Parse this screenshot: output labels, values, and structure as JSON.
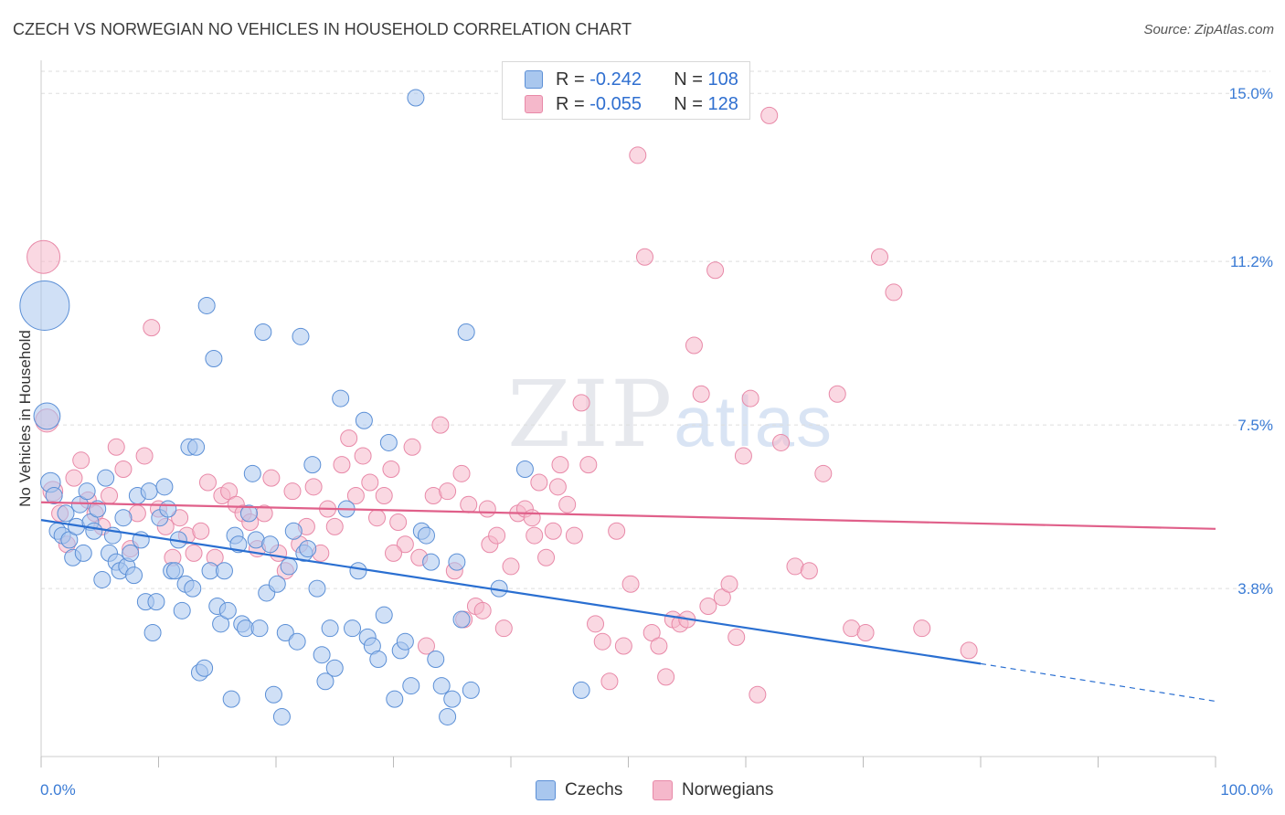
{
  "title": "CZECH VS NORWEGIAN NO VEHICLES IN HOUSEHOLD CORRELATION CHART",
  "source": "Source: ZipAtlas.com",
  "watermark": {
    "zip": "ZIP",
    "atlas": "atlas"
  },
  "legend": {
    "czech": {
      "r_label": "R = ",
      "r_value": "-0.242",
      "n_label": "N = ",
      "n_value": "108"
    },
    "norwegian": {
      "r_label": "R = ",
      "r_value": "-0.055",
      "n_label": "N = ",
      "n_value": "128"
    }
  },
  "bottom_legend": {
    "czechs": "Czechs",
    "norwegians": "Norwegians"
  },
  "colors": {
    "czech_fill": "#a9c7ee",
    "czech_stroke": "#5b8fd6",
    "czech_line": "#2a6fd1",
    "norwegian_fill": "#f5b8cb",
    "norwegian_stroke": "#e889a8",
    "norwegian_line": "#e0608a",
    "tick_text": "#3a7bd5",
    "grid": "#dddddd"
  },
  "chart_data": {
    "type": "scatter",
    "title": "CZECH VS NORWEGIAN NO VEHICLES IN HOUSEHOLD CORRELATION CHART",
    "xlabel": "",
    "ylabel": "No Vehicles in Household",
    "xlim": [
      0,
      100
    ],
    "ylim": [
      0,
      15.5
    ],
    "x_tick_labels": [
      "0.0%",
      "100.0%"
    ],
    "y_ticks": [
      3.8,
      7.5,
      11.2,
      15.0
    ],
    "y_tick_labels": [
      "3.8%",
      "7.5%",
      "11.2%",
      "15.0%"
    ],
    "grid": true,
    "legend_position": "top-center",
    "series": [
      {
        "name": "Czechs",
        "trend": {
          "x_start": 0,
          "y_start": 5.35,
          "x_end": 80,
          "y_end": 2.1,
          "dash_x_end": 100,
          "dash_y_end": 1.25
        },
        "points": [
          [
            0.3,
            10.2,
            30
          ],
          [
            0.5,
            7.7,
            16
          ],
          [
            0.8,
            6.2,
            12
          ],
          [
            1.1,
            5.9,
            10
          ],
          [
            1.4,
            5.1,
            10
          ],
          [
            1.8,
            5.0,
            10
          ],
          [
            2.1,
            5.5,
            10
          ],
          [
            2.4,
            4.9,
            10
          ],
          [
            2.7,
            4.5,
            10
          ],
          [
            3.0,
            5.2,
            10
          ],
          [
            3.3,
            5.7,
            10
          ],
          [
            3.6,
            4.6,
            10
          ],
          [
            3.9,
            6.0,
            10
          ],
          [
            4.2,
            5.3,
            10
          ],
          [
            4.5,
            5.1,
            10
          ],
          [
            4.8,
            5.6,
            10
          ],
          [
            5.2,
            4.0,
            10
          ],
          [
            5.5,
            6.3,
            10
          ],
          [
            5.8,
            4.6,
            10
          ],
          [
            6.1,
            5.0,
            10
          ],
          [
            6.4,
            4.4,
            10
          ],
          [
            6.7,
            4.2,
            10
          ],
          [
            7.0,
            5.4,
            10
          ],
          [
            7.3,
            4.3,
            10
          ],
          [
            7.6,
            4.6,
            10
          ],
          [
            7.9,
            4.1,
            10
          ],
          [
            8.2,
            5.9,
            10
          ],
          [
            8.5,
            4.9,
            10
          ],
          [
            8.9,
            3.5,
            10
          ],
          [
            9.2,
            6.0,
            10
          ],
          [
            9.5,
            2.8,
            10
          ],
          [
            9.8,
            3.5,
            10
          ],
          [
            10.1,
            5.4,
            10
          ],
          [
            10.5,
            6.1,
            10
          ],
          [
            10.8,
            5.6,
            10
          ],
          [
            11.1,
            4.2,
            10
          ],
          [
            11.4,
            4.2,
            10
          ],
          [
            11.7,
            4.9,
            10
          ],
          [
            12.0,
            3.3,
            10
          ],
          [
            12.3,
            3.9,
            10
          ],
          [
            12.6,
            7.0,
            10
          ],
          [
            12.9,
            3.8,
            10
          ],
          [
            13.2,
            7.0,
            10
          ],
          [
            13.5,
            1.9,
            10
          ],
          [
            13.9,
            2.0,
            10
          ],
          [
            14.1,
            10.2,
            10
          ],
          [
            14.4,
            4.2,
            10
          ],
          [
            14.7,
            9.0,
            10
          ],
          [
            15.0,
            3.4,
            10
          ],
          [
            15.3,
            3.0,
            10
          ],
          [
            15.6,
            4.2,
            10
          ],
          [
            15.9,
            3.3,
            10
          ],
          [
            16.2,
            1.3,
            10
          ],
          [
            16.5,
            5.0,
            10
          ],
          [
            16.8,
            4.8,
            10
          ],
          [
            17.1,
            3.0,
            10
          ],
          [
            17.4,
            2.9,
            10
          ],
          [
            17.7,
            5.5,
            10
          ],
          [
            18.0,
            6.4,
            10
          ],
          [
            18.3,
            4.9,
            10
          ],
          [
            18.6,
            2.9,
            10
          ],
          [
            18.9,
            9.6,
            10
          ],
          [
            19.2,
            3.7,
            10
          ],
          [
            19.5,
            4.8,
            10
          ],
          [
            19.8,
            1.4,
            10
          ],
          [
            20.1,
            3.9,
            10
          ],
          [
            20.5,
            0.9,
            10
          ],
          [
            20.8,
            2.8,
            10
          ],
          [
            21.1,
            4.3,
            10
          ],
          [
            21.5,
            5.1,
            10
          ],
          [
            21.8,
            2.6,
            10
          ],
          [
            22.1,
            9.5,
            10
          ],
          [
            22.4,
            4.6,
            10
          ],
          [
            22.7,
            4.7,
            10
          ],
          [
            23.1,
            6.6,
            10
          ],
          [
            23.5,
            3.8,
            10
          ],
          [
            23.9,
            2.3,
            10
          ],
          [
            24.2,
            1.7,
            10
          ],
          [
            24.6,
            2.9,
            10
          ],
          [
            25.0,
            2.0,
            10
          ],
          [
            25.5,
            8.1,
            10
          ],
          [
            26.0,
            5.6,
            10
          ],
          [
            26.5,
            2.9,
            10
          ],
          [
            27.0,
            4.2,
            10
          ],
          [
            27.5,
            7.6,
            10
          ],
          [
            27.8,
            2.7,
            10
          ],
          [
            28.2,
            2.5,
            10
          ],
          [
            28.7,
            2.2,
            10
          ],
          [
            29.2,
            3.2,
            10
          ],
          [
            29.6,
            7.1,
            10
          ],
          [
            30.1,
            1.3,
            10
          ],
          [
            30.6,
            2.4,
            10
          ],
          [
            31.0,
            2.6,
            10
          ],
          [
            31.5,
            1.6,
            10
          ],
          [
            31.9,
            14.9,
            10
          ],
          [
            32.4,
            5.1,
            10
          ],
          [
            32.8,
            5.0,
            10
          ],
          [
            33.2,
            4.4,
            10
          ],
          [
            33.6,
            2.2,
            10
          ],
          [
            34.1,
            1.6,
            10
          ],
          [
            34.6,
            0.9,
            10
          ],
          [
            35.0,
            1.3,
            10
          ],
          [
            35.4,
            4.4,
            10
          ],
          [
            35.8,
            3.1,
            10
          ],
          [
            36.2,
            9.6,
            10
          ],
          [
            36.6,
            1.5,
            10
          ],
          [
            39.0,
            3.8,
            10
          ],
          [
            41.2,
            6.5,
            10
          ],
          [
            46.0,
            1.5,
            10
          ]
        ]
      },
      {
        "name": "Norwegians",
        "trend": {
          "x_start": 0,
          "y_start": 5.75,
          "x_end": 100,
          "y_end": 5.15
        },
        "points": [
          [
            0.2,
            11.3,
            20
          ],
          [
            0.5,
            7.6,
            14
          ],
          [
            1.0,
            6.0,
            12
          ],
          [
            1.6,
            5.5,
            10
          ],
          [
            2.2,
            4.8,
            10
          ],
          [
            2.8,
            6.3,
            10
          ],
          [
            3.4,
            6.7,
            10
          ],
          [
            4.0,
            5.8,
            10
          ],
          [
            4.6,
            5.5,
            10
          ],
          [
            5.2,
            5.2,
            10
          ],
          [
            5.8,
            5.9,
            10
          ],
          [
            6.4,
            7.0,
            10
          ],
          [
            7.0,
            6.5,
            10
          ],
          [
            7.6,
            4.7,
            10
          ],
          [
            8.2,
            5.5,
            10
          ],
          [
            8.8,
            6.8,
            10
          ],
          [
            9.4,
            9.7,
            10
          ],
          [
            10.0,
            5.6,
            10
          ],
          [
            10.6,
            5.2,
            10
          ],
          [
            11.2,
            4.5,
            10
          ],
          [
            11.8,
            5.4,
            10
          ],
          [
            12.4,
            5.0,
            10
          ],
          [
            13.0,
            4.6,
            10
          ],
          [
            13.6,
            5.1,
            10
          ],
          [
            14.2,
            6.2,
            10
          ],
          [
            14.8,
            4.5,
            10
          ],
          [
            15.4,
            5.9,
            10
          ],
          [
            16.0,
            6.0,
            10
          ],
          [
            16.6,
            5.7,
            10
          ],
          [
            17.2,
            5.5,
            10
          ],
          [
            17.8,
            5.3,
            10
          ],
          [
            18.4,
            4.7,
            10
          ],
          [
            19.0,
            5.5,
            10
          ],
          [
            19.6,
            6.3,
            10
          ],
          [
            20.2,
            4.6,
            10
          ],
          [
            20.8,
            4.2,
            10
          ],
          [
            21.4,
            6.0,
            10
          ],
          [
            22.0,
            4.8,
            10
          ],
          [
            22.6,
            5.2,
            10
          ],
          [
            23.2,
            6.1,
            10
          ],
          [
            23.8,
            4.6,
            10
          ],
          [
            24.4,
            5.6,
            10
          ],
          [
            25.0,
            5.2,
            10
          ],
          [
            25.6,
            6.6,
            10
          ],
          [
            26.2,
            7.2,
            10
          ],
          [
            26.8,
            5.9,
            10
          ],
          [
            27.4,
            6.8,
            10
          ],
          [
            28.0,
            6.2,
            10
          ],
          [
            28.6,
            5.4,
            10
          ],
          [
            29.2,
            5.9,
            10
          ],
          [
            29.8,
            6.5,
            10
          ],
          [
            30.4,
            5.3,
            10
          ],
          [
            31.0,
            4.8,
            10
          ],
          [
            31.6,
            7.0,
            10
          ],
          [
            32.2,
            4.5,
            10
          ],
          [
            32.8,
            2.5,
            10
          ],
          [
            33.4,
            5.9,
            10
          ],
          [
            34.0,
            7.5,
            10
          ],
          [
            34.6,
            6.0,
            10
          ],
          [
            35.2,
            4.2,
            10
          ],
          [
            35.8,
            6.4,
            10
          ],
          [
            36.4,
            5.7,
            10
          ],
          [
            37.0,
            3.4,
            10
          ],
          [
            37.6,
            3.3,
            10
          ],
          [
            38.2,
            4.8,
            10
          ],
          [
            38.8,
            5.0,
            10
          ],
          [
            39.4,
            2.9,
            10
          ],
          [
            40.0,
            4.3,
            10
          ],
          [
            40.6,
            5.5,
            10
          ],
          [
            41.2,
            5.6,
            10
          ],
          [
            41.8,
            5.4,
            10
          ],
          [
            42.4,
            6.2,
            10
          ],
          [
            43.0,
            4.5,
            10
          ],
          [
            43.6,
            5.1,
            10
          ],
          [
            44.2,
            6.6,
            10
          ],
          [
            44.8,
            5.7,
            10
          ],
          [
            45.4,
            5.0,
            10
          ],
          [
            46.0,
            8.0,
            10
          ],
          [
            46.6,
            6.6,
            10
          ],
          [
            47.2,
            3.0,
            10
          ],
          [
            47.8,
            2.6,
            10
          ],
          [
            48.4,
            1.7,
            10
          ],
          [
            49.0,
            5.1,
            10
          ],
          [
            49.6,
            2.5,
            10
          ],
          [
            50.2,
            3.9,
            10
          ],
          [
            50.8,
            13.6,
            10
          ],
          [
            51.4,
            11.3,
            10
          ],
          [
            52.0,
            2.8,
            10
          ],
          [
            52.6,
            2.5,
            10
          ],
          [
            53.2,
            1.8,
            10
          ],
          [
            53.8,
            3.1,
            10
          ],
          [
            54.4,
            3.0,
            10
          ],
          [
            55.0,
            3.1,
            10
          ],
          [
            55.6,
            9.3,
            10
          ],
          [
            56.2,
            8.2,
            10
          ],
          [
            56.8,
            3.4,
            10
          ],
          [
            57.4,
            11.0,
            10
          ],
          [
            58.0,
            3.6,
            10
          ],
          [
            58.6,
            3.9,
            10
          ],
          [
            59.2,
            2.7,
            10
          ],
          [
            59.8,
            6.8,
            10
          ],
          [
            60.4,
            8.1,
            10
          ],
          [
            61.0,
            1.4,
            10
          ],
          [
            62.0,
            14.5,
            10
          ],
          [
            63.0,
            7.1,
            10
          ],
          [
            64.2,
            4.3,
            10
          ],
          [
            65.4,
            4.2,
            10
          ],
          [
            66.6,
            6.4,
            10
          ],
          [
            67.8,
            8.2,
            10
          ],
          [
            69.0,
            2.9,
            10
          ],
          [
            70.2,
            2.8,
            10
          ],
          [
            71.4,
            11.3,
            10
          ],
          [
            72.6,
            10.5,
            10
          ],
          [
            75.0,
            2.9,
            10
          ],
          [
            79.0,
            2.4,
            10
          ],
          [
            44.0,
            6.1,
            10
          ],
          [
            38.0,
            5.6,
            10
          ],
          [
            42.0,
            5.0,
            10
          ],
          [
            36.0,
            3.1,
            10
          ],
          [
            30.0,
            4.6,
            10
          ]
        ]
      }
    ]
  }
}
